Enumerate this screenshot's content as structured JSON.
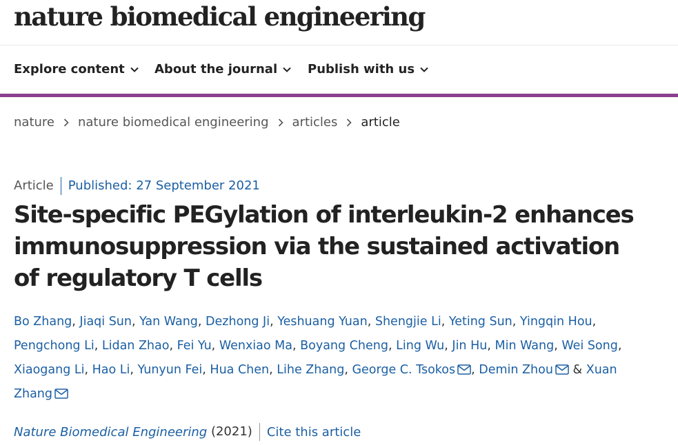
{
  "site": {
    "logo_text": "nature biomedical engineering"
  },
  "nav": {
    "items": [
      {
        "label": "Explore content"
      },
      {
        "label": "About the journal"
      },
      {
        "label": "Publish with us"
      }
    ]
  },
  "breadcrumb": {
    "items": [
      {
        "label": "nature"
      },
      {
        "label": "nature biomedical engineering"
      },
      {
        "label": "articles"
      },
      {
        "label": "article"
      }
    ]
  },
  "article": {
    "type": "Article",
    "published": "Published: 27 September 2021",
    "title": "Site-specific PEGylation of interleukin-2 enhances immunosuppression via the sustained activation of regulatory T cells",
    "authors": [
      {
        "name": "Bo Zhang",
        "mail": false
      },
      {
        "name": "Jiaqi Sun",
        "mail": false
      },
      {
        "name": "Yan Wang",
        "mail": false
      },
      {
        "name": "Dezhong Ji",
        "mail": false
      },
      {
        "name": "Yeshuang Yuan",
        "mail": false
      },
      {
        "name": "Shengjie Li",
        "mail": false
      },
      {
        "name": "Yeting Sun",
        "mail": false
      },
      {
        "name": "Yingqin Hou",
        "mail": false
      },
      {
        "name": "Pengchong Li",
        "mail": false
      },
      {
        "name": "Lidan Zhao",
        "mail": false
      },
      {
        "name": "Fei Yu",
        "mail": false
      },
      {
        "name": "Wenxiao Ma",
        "mail": false
      },
      {
        "name": "Boyang Cheng",
        "mail": false
      },
      {
        "name": "Ling Wu",
        "mail": false
      },
      {
        "name": "Jin Hu",
        "mail": false
      },
      {
        "name": "Min Wang",
        "mail": false
      },
      {
        "name": "Wei Song",
        "mail": false
      },
      {
        "name": "Xiaogang Li",
        "mail": false
      },
      {
        "name": "Hao Li",
        "mail": false
      },
      {
        "name": "Yunyun Fei",
        "mail": false
      },
      {
        "name": "Hua Chen",
        "mail": false
      },
      {
        "name": "Lihe Zhang",
        "mail": false
      },
      {
        "name": "George C. Tsokos",
        "mail": true
      },
      {
        "name": "Demin Zhou",
        "mail": true
      },
      {
        "name": "Xuan Zhang",
        "mail": true
      }
    ],
    "author_separator": ", ",
    "author_last_separator": " & ",
    "journal": "Nature Biomedical Engineering",
    "year": "(2021)",
    "cite_label": "Cite this article"
  },
  "colors": {
    "accent_bar": "#8b3f8f",
    "link": "#1b5fa3",
    "text": "#222222"
  },
  "icons": {
    "nav_chevron": "chevron-down-icon",
    "breadcrumb_sep": "chevron-right-icon",
    "author_mail": "envelope-icon"
  }
}
